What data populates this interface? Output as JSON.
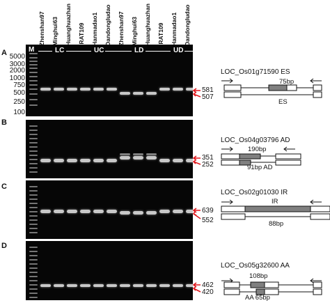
{
  "lanes": [
    "M",
    "Zhenshan97",
    "Minghui63",
    "Huanghuazhan",
    "IRAT109",
    "Hanmadao1",
    "Dandongludao",
    "Zhenshan97",
    "Minghui63",
    "Huanghuazhan",
    "IRAT109",
    "Hanmadao1",
    "Dandongludao"
  ],
  "conditions": [
    "LC",
    "UC",
    "LD",
    "UD"
  ],
  "marker_sizes": [
    "5000",
    "3000",
    "2000",
    "1000",
    "750",
    "500",
    "250",
    "100"
  ],
  "panels": [
    {
      "letter": "A",
      "bands": [
        "581",
        "507"
      ],
      "gene": "LOC_Os01g71590",
      "event": "ES",
      "labels": {
        "top": "75bp",
        "bottom": "ES"
      }
    },
    {
      "letter": "B",
      "bands": [
        "351",
        "252"
      ],
      "gene": "LOC_Os04g03796",
      "event": "AD",
      "labels": {
        "top": "190bp",
        "bottom": "91bp AD"
      }
    },
    {
      "letter": "C",
      "bands": [
        "639",
        "552"
      ],
      "gene": "LOC_Os02g01030",
      "event": "IR",
      "labels": {
        "top": "IR",
        "bottom": "88bp"
      }
    },
    {
      "letter": "D",
      "bands": [
        "462",
        "420"
      ],
      "gene": "LOC_Os05g32600",
      "event": "AA",
      "labels": {
        "top": "108bp",
        "bottom": "AA 65bp"
      }
    }
  ],
  "colors": {
    "arrow": "#e0191e",
    "gel": "#060606",
    "exon_fill": "#ffffff",
    "event_fill": "#808080"
  }
}
